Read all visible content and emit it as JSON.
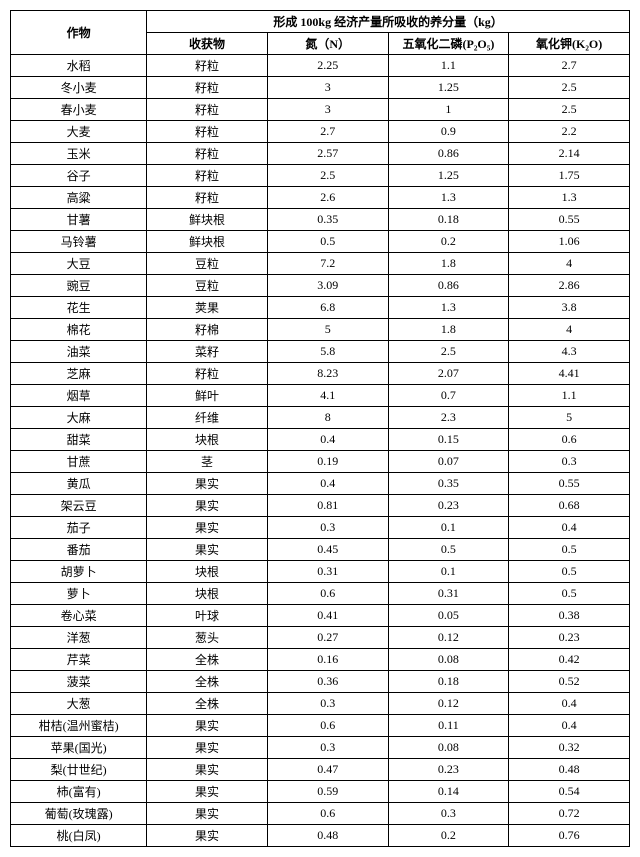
{
  "header": {
    "crop_label": "作物",
    "main_header": "形成 100kg 经济产量所吸收的养分量（kg）",
    "harvest_label": "收获物",
    "nitrogen_label": "氮（N）",
    "phosphorus_label": "五氧化二磷(P₂O₅)",
    "potassium_label": "氧化钾(K₂O)"
  },
  "styling": {
    "border_color": "#000000",
    "background_color": "#ffffff",
    "font_size": 12,
    "header_font_weight": "bold"
  },
  "rows": [
    {
      "crop": "水稻",
      "harvest": "籽粒",
      "n": "2.25",
      "p": "1.1",
      "k": "2.7"
    },
    {
      "crop": "冬小麦",
      "harvest": "籽粒",
      "n": "3",
      "p": "1.25",
      "k": "2.5"
    },
    {
      "crop": "春小麦",
      "harvest": "籽粒",
      "n": "3",
      "p": "1",
      "k": "2.5"
    },
    {
      "crop": "大麦",
      "harvest": "籽粒",
      "n": "2.7",
      "p": "0.9",
      "k": "2.2"
    },
    {
      "crop": "玉米",
      "harvest": "籽粒",
      "n": "2.57",
      "p": "0.86",
      "k": "2.14"
    },
    {
      "crop": "谷子",
      "harvest": "籽粒",
      "n": "2.5",
      "p": "1.25",
      "k": "1.75"
    },
    {
      "crop": "高粱",
      "harvest": "籽粒",
      "n": "2.6",
      "p": "1.3",
      "k": "1.3"
    },
    {
      "crop": "甘薯",
      "harvest": "鲜块根",
      "n": "0.35",
      "p": "0.18",
      "k": "0.55"
    },
    {
      "crop": "马铃薯",
      "harvest": "鲜块根",
      "n": "0.5",
      "p": "0.2",
      "k": "1.06"
    },
    {
      "crop": "大豆",
      "harvest": "豆粒",
      "n": "7.2",
      "p": "1.8",
      "k": "4"
    },
    {
      "crop": "豌豆",
      "harvest": "豆粒",
      "n": "3.09",
      "p": "0.86",
      "k": "2.86"
    },
    {
      "crop": "花生",
      "harvest": "荚果",
      "n": "6.8",
      "p": "1.3",
      "k": "3.8"
    },
    {
      "crop": "棉花",
      "harvest": "籽棉",
      "n": "5",
      "p": "1.8",
      "k": "4"
    },
    {
      "crop": "油菜",
      "harvest": "菜籽",
      "n": "5.8",
      "p": "2.5",
      "k": "4.3"
    },
    {
      "crop": "芝麻",
      "harvest": "籽粒",
      "n": "8.23",
      "p": "2.07",
      "k": "4.41"
    },
    {
      "crop": "烟草",
      "harvest": "鲜叶",
      "n": "4.1",
      "p": "0.7",
      "k": "1.1"
    },
    {
      "crop": "大麻",
      "harvest": "纤维",
      "n": "8",
      "p": "2.3",
      "k": "5"
    },
    {
      "crop": "甜菜",
      "harvest": "块根",
      "n": "0.4",
      "p": "0.15",
      "k": "0.6"
    },
    {
      "crop": "甘蔗",
      "harvest": "茎",
      "n": "0.19",
      "p": "0.07",
      "k": "0.3"
    },
    {
      "crop": "黄瓜",
      "harvest": "果实",
      "n": "0.4",
      "p": "0.35",
      "k": "0.55"
    },
    {
      "crop": "架云豆",
      "harvest": "果实",
      "n": "0.81",
      "p": "0.23",
      "k": "0.68"
    },
    {
      "crop": "茄子",
      "harvest": "果实",
      "n": "0.3",
      "p": "0.1",
      "k": "0.4"
    },
    {
      "crop": "番茄",
      "harvest": "果实",
      "n": "0.45",
      "p": "0.5",
      "k": "0.5"
    },
    {
      "crop": "胡萝卜",
      "harvest": "块根",
      "n": "0.31",
      "p": "0.1",
      "k": "0.5"
    },
    {
      "crop": "萝卜",
      "harvest": "块根",
      "n": "0.6",
      "p": "0.31",
      "k": "0.5"
    },
    {
      "crop": "卷心菜",
      "harvest": "叶球",
      "n": "0.41",
      "p": "0.05",
      "k": "0.38"
    },
    {
      "crop": "洋葱",
      "harvest": "葱头",
      "n": "0.27",
      "p": "0.12",
      "k": "0.23"
    },
    {
      "crop": "芹菜",
      "harvest": "全株",
      "n": "0.16",
      "p": "0.08",
      "k": "0.42"
    },
    {
      "crop": "菠菜",
      "harvest": "全株",
      "n": "0.36",
      "p": "0.18",
      "k": "0.52"
    },
    {
      "crop": "大葱",
      "harvest": "全株",
      "n": "0.3",
      "p": "0.12",
      "k": "0.4"
    },
    {
      "crop": "柑桔(温州蜜桔)",
      "harvest": "果实",
      "n": "0.6",
      "p": "0.11",
      "k": "0.4"
    },
    {
      "crop": "苹果(国光)",
      "harvest": "果实",
      "n": "0.3",
      "p": "0.08",
      "k": "0.32"
    },
    {
      "crop": "梨(廿世纪)",
      "harvest": "果实",
      "n": "0.47",
      "p": "0.23",
      "k": "0.48"
    },
    {
      "crop": "柿(富有)",
      "harvest": "果实",
      "n": "0.59",
      "p": "0.14",
      "k": "0.54"
    },
    {
      "crop": "葡萄(玫瑰露)",
      "harvest": "果实",
      "n": "0.6",
      "p": "0.3",
      "k": "0.72"
    },
    {
      "crop": "桃(白凤)",
      "harvest": "果实",
      "n": "0.48",
      "p": "0.2",
      "k": "0.76"
    }
  ]
}
